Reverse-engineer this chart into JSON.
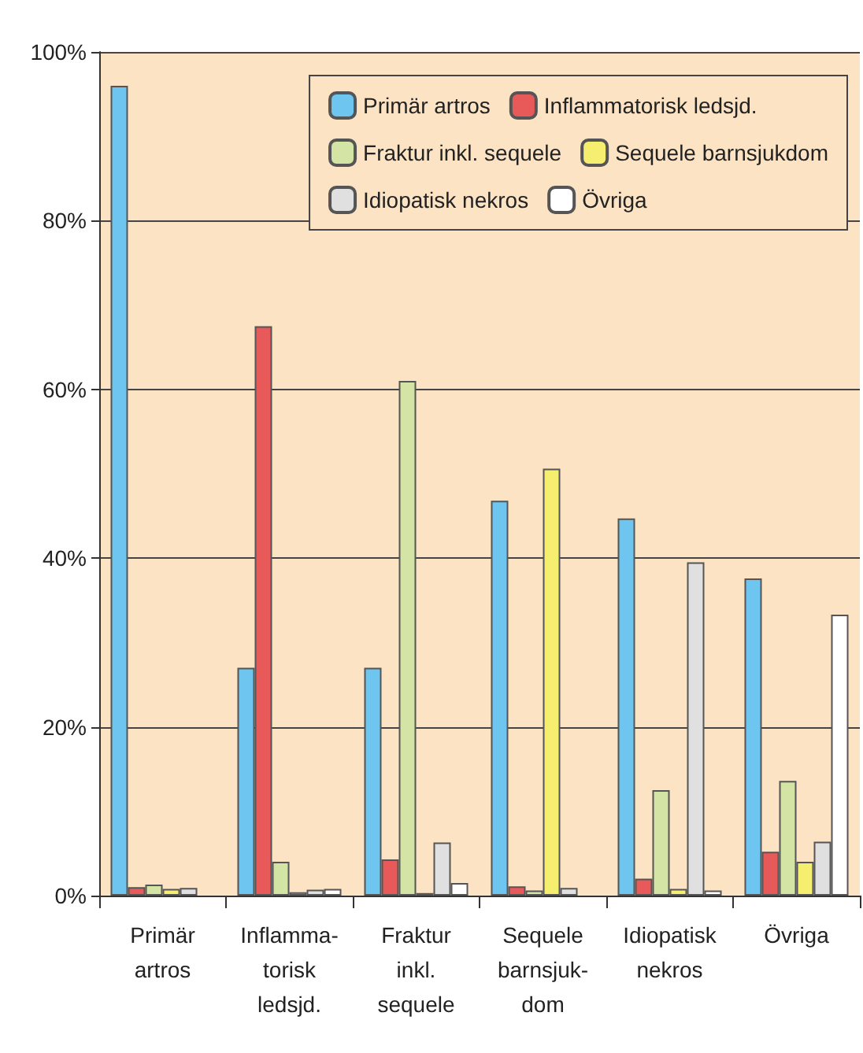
{
  "chart_data": {
    "type": "bar",
    "categories": [
      "Primär\nartros",
      "Inflamma-\ntorisk\nledsjd.",
      "Fraktur\ninkl.\nsequele",
      "Sequele\nbarnsjuk-\ndom",
      "Idiopatisk\nnekros",
      "Övriga"
    ],
    "series": [
      {
        "name": "Primär artros",
        "color": "#6ec6f0",
        "values": [
          96,
          27,
          27,
          46.8,
          44.7,
          37.6
        ]
      },
      {
        "name": "Inflammatorisk ledsjd.",
        "color": "#e85a5a",
        "values": [
          1,
          67.5,
          4.3,
          1.1,
          2,
          5.2
        ]
      },
      {
        "name": "Fraktur inkl. sequele",
        "color": "#d4e4a4",
        "values": [
          1.3,
          4,
          61,
          0.6,
          12.5,
          13.6
        ]
      },
      {
        "name": "Sequele barnsjukdom",
        "color": "#f5ee6e",
        "values": [
          0.8,
          0.4,
          0.3,
          50.6,
          0.8,
          4
        ]
      },
      {
        "name": "Idiopatisk nekros",
        "color": "#dfe0df",
        "values": [
          0.9,
          0.7,
          6.3,
          0.9,
          39.5,
          6.4
        ]
      },
      {
        "name": "Övriga",
        "color": "#ffffff",
        "values": [
          null,
          0.8,
          1.5,
          null,
          0.6,
          33.3
        ]
      }
    ],
    "ylim": [
      0,
      100
    ],
    "yticks": [
      {
        "value": 0,
        "label": "0%"
      },
      {
        "value": 20,
        "label": "20%"
      },
      {
        "value": 40,
        "label": "40%"
      },
      {
        "value": 60,
        "label": "60%"
      },
      {
        "value": 80,
        "label": "80%"
      },
      {
        "value": 100,
        "label": "100%"
      }
    ],
    "grid": "y",
    "legend": "top right"
  }
}
